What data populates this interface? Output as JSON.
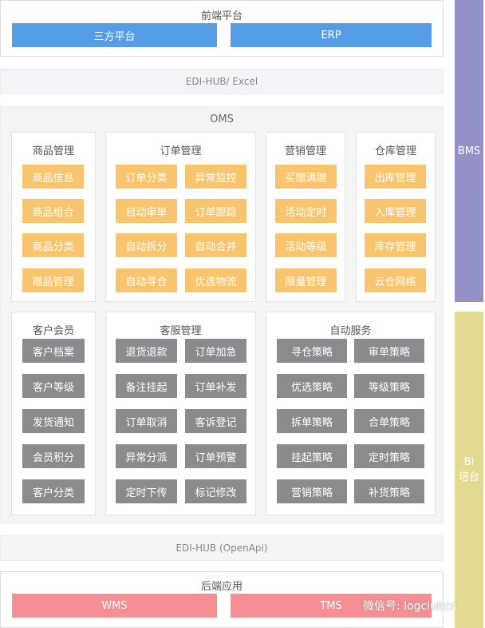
{
  "frontend": {
    "title": "前端平台",
    "buttons": [
      "三方平台",
      "ERP"
    ]
  },
  "edi_top": "EDI-HUB/ Excel",
  "oms": {
    "title": "OMS",
    "product": {
      "title": "商品管理",
      "items": [
        "商品信息",
        "商品组合",
        "商品分类",
        "赠品管理"
      ]
    },
    "order": {
      "title": "订单管理",
      "items": [
        "订单分类",
        "异常监控",
        "自动审单",
        "订单跟踪",
        "自动拆分",
        "自动合并",
        "自动寻仓",
        "优选物流"
      ]
    },
    "marketing": {
      "title": "营销管理",
      "items": [
        "买赠满赠",
        "活动定时",
        "活动等级",
        "限量管理"
      ]
    },
    "warehouse": {
      "title": "仓库管理",
      "items": [
        "出库管理",
        "入库管理",
        "库存管理",
        "云仓网络"
      ]
    },
    "customer": {
      "title": "客户会员",
      "items": [
        "客户档案",
        "客户等级",
        "发货通知",
        "会员积分",
        "客户分类"
      ]
    },
    "service": {
      "title": "客服管理",
      "items": [
        "退货退款",
        "订单加急",
        "备注挂起",
        "订单补发",
        "订单取消",
        "客诉登记",
        "异常分派",
        "订单预警",
        "定时下传",
        "标记修改"
      ]
    },
    "auto": {
      "title": "自动服务",
      "items": [
        "寻仓策略",
        "审单策略",
        "优选策略",
        "等级策略",
        "拆单策略",
        "合单策略",
        "挂起策略",
        "定时策略",
        "营销策略",
        "补货策略"
      ]
    }
  },
  "edi_bottom": "EDI-HUB (OpenApi)",
  "backend": {
    "title": "后端应用",
    "buttons": [
      "WMS",
      "TMS"
    ]
  },
  "side": {
    "bms": "BMS",
    "bi": "BI\n塔台"
  },
  "watermark": "微信号: logclubcn",
  "colors": {
    "blue": "#559de6",
    "orange": "#f8c46e",
    "gray": "#8b8a8c",
    "red": "#f58f93",
    "bms": "#9491c9",
    "bi": "#e2da8e"
  }
}
